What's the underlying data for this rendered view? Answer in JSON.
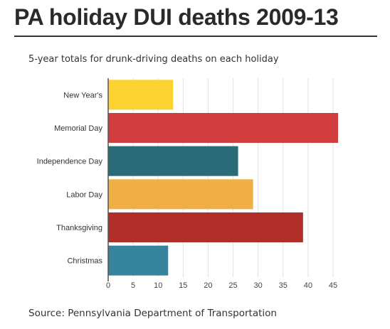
{
  "header": {
    "title": "PA holiday DUI deaths 2009-13",
    "subtitle": "5-year totals for drunk-driving deaths on each holiday"
  },
  "footer": {
    "source": "Source: Pennsylvania Department of Transportation"
  },
  "chart_data": {
    "type": "bar",
    "orientation": "horizontal",
    "title": "PA holiday DUI deaths 2009-13",
    "subtitle": "5-year totals for drunk-driving deaths on each holiday",
    "xlabel": "",
    "ylabel": "",
    "categories": [
      "New Year's",
      "Memorial Day",
      "Independence Day",
      "Labor Day",
      "Thanksgiving",
      "Christmas"
    ],
    "values": [
      13,
      46,
      26,
      29,
      39,
      12
    ],
    "colors": [
      "#fbd230",
      "#d13c3f",
      "#2b6b78",
      "#efaf45",
      "#af2e2a",
      "#35849c"
    ],
    "xlim": [
      0,
      47
    ],
    "xticks": [
      0,
      5,
      10,
      15,
      20,
      25,
      30,
      35,
      40,
      45
    ],
    "grid": true
  }
}
